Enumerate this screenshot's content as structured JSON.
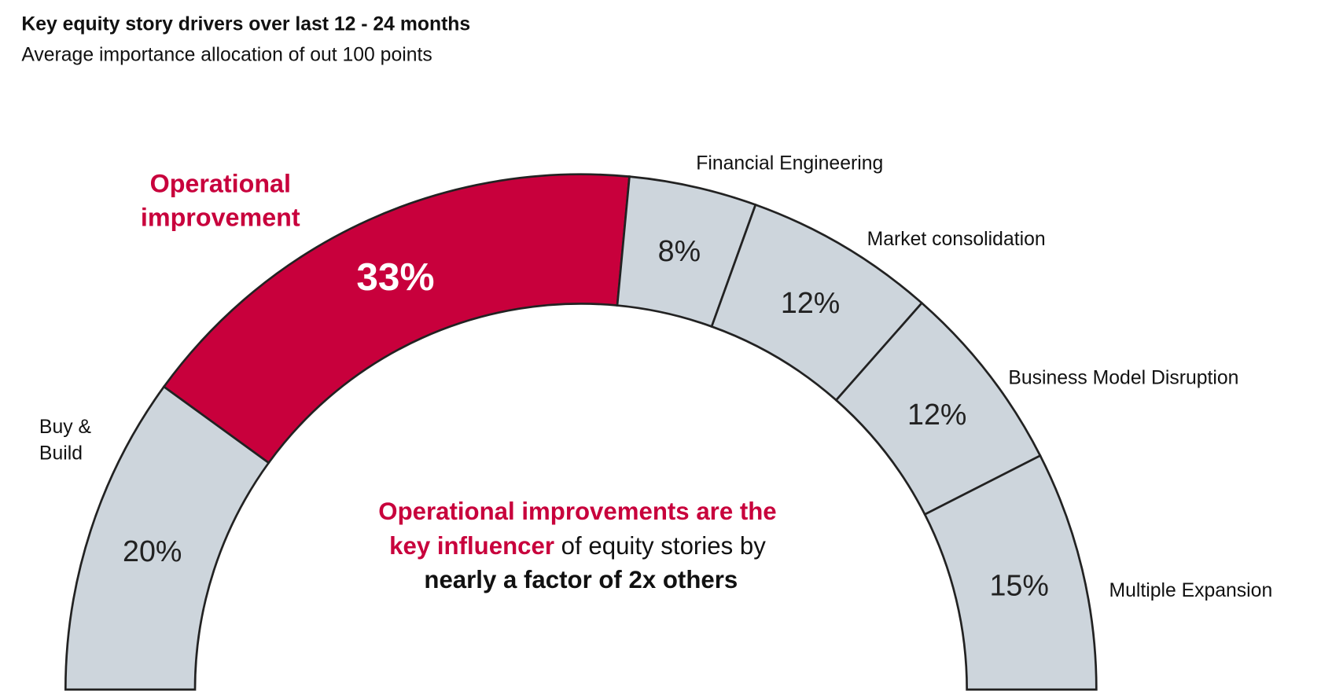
{
  "chart_data": {
    "type": "pie",
    "variant": "half-donut",
    "title": "Key equity story drivers over last 12 - 24 months",
    "subtitle": "Average importance allocation of out 100 points",
    "unit": "%",
    "slices": [
      {
        "label": "Buy & Build",
        "label_lines": [
          "Buy &",
          "Build"
        ],
        "value": 20,
        "display": "20%",
        "highlight": false
      },
      {
        "label": "Operational improvement",
        "label_lines": [
          "Operational",
          "improvement"
        ],
        "value": 33,
        "display": "33%",
        "highlight": true
      },
      {
        "label": "Financial Engineering",
        "label_lines": [
          "Financial Engineering"
        ],
        "value": 8,
        "display": "8%",
        "highlight": false
      },
      {
        "label": "Market consolidation",
        "label_lines": [
          "Market consolidation"
        ],
        "value": 12,
        "display": "12%",
        "highlight": false
      },
      {
        "label": "Business Model Disruption",
        "label_lines": [
          "Business Model Disruption"
        ],
        "value": 12,
        "display": "12%",
        "highlight": false
      },
      {
        "label": "Multiple Expansion",
        "label_lines": [
          "Multiple Expansion"
        ],
        "value": 15,
        "display": "15%",
        "highlight": false
      }
    ],
    "annotation": {
      "line1": "Operational improvements are the",
      "line2_highlight": "key influencer",
      "line2_rest": " of equity stories by",
      "line3": "nearly a factor of 2x others"
    }
  },
  "colors": {
    "highlight": "#C8003C",
    "base": "#CDD5DC",
    "stroke": "#222222",
    "text": "#111111"
  }
}
